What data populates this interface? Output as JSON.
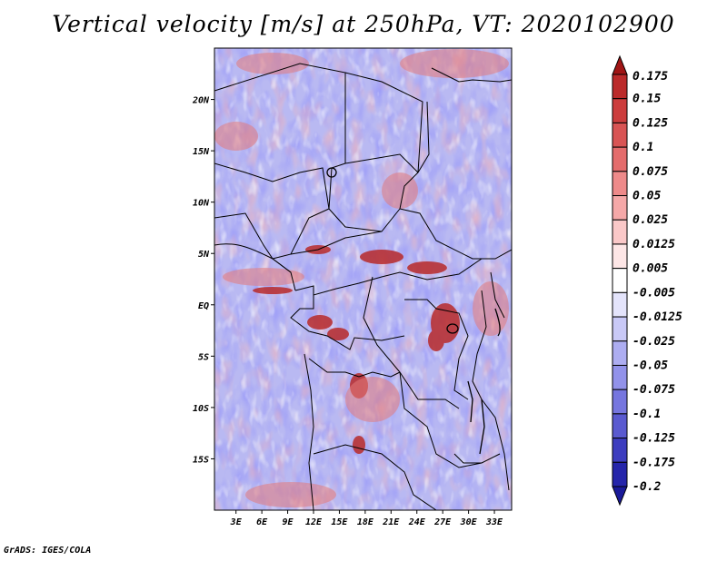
{
  "title": "Vertical velocity [m/s] at 250hPa, VT: 2020102900",
  "footer": "GrADS: IGES/COLA",
  "map": {
    "lat_labels": [
      "20N",
      "15N",
      "10N",
      "5N",
      "EQ",
      "5S",
      "10S",
      "15S"
    ],
    "lat_values": [
      20,
      15,
      10,
      5,
      0,
      -5,
      -10,
      -15
    ],
    "lon_labels": [
      "3E",
      "6E",
      "9E",
      "12E",
      "15E",
      "18E",
      "21E",
      "24E",
      "27E",
      "30E",
      "33E"
    ],
    "lon_values": [
      3,
      6,
      9,
      12,
      15,
      18,
      21,
      24,
      27,
      30,
      33
    ],
    "lon_range": [
      0.5,
      35
    ],
    "lat_range": [
      -20,
      25
    ]
  },
  "colorbar": {
    "levels": [
      "0.175",
      "0.15",
      "0.125",
      "0.1",
      "0.075",
      "0.05",
      "0.025",
      "0.0125",
      "0.005",
      "-0.005",
      "-0.0125",
      "-0.025",
      "-0.05",
      "-0.075",
      "-0.1",
      "-0.125",
      "-0.175",
      "-0.2"
    ],
    "colors": [
      "#a01515",
      "#bb2a2a",
      "#cc3d3d",
      "#d85454",
      "#e46c6c",
      "#ee8a8a",
      "#f5a8a8",
      "#fac8c8",
      "#fde6e6",
      "#ffffff",
      "#e4e4fb",
      "#c9c9f7",
      "#adadf1",
      "#9292ea",
      "#7676df",
      "#5a5ad0",
      "#3d3dbf",
      "#2525aa",
      "#1a1a99"
    ]
  }
}
